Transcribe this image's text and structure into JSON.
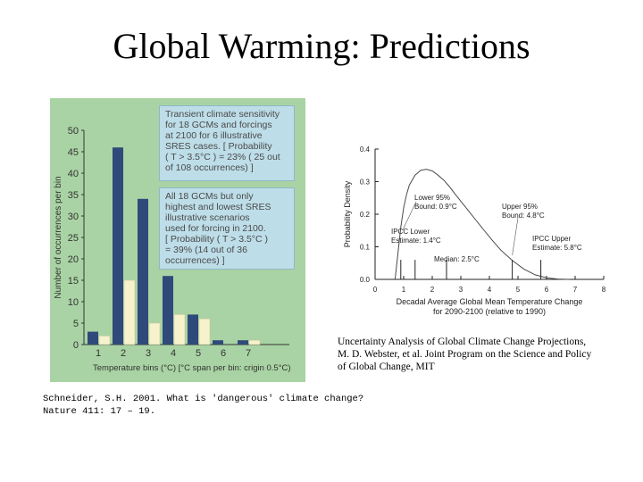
{
  "slide": {
    "title": "Global Warming: Predictions",
    "left_caption_lines": [
      "Schneider, S.H. 2001. What is 'dangerous' climate change?",
      "Nature 411: 17 – 19."
    ],
    "right_caption_lines": [
      "Uncertainty Analysis of Global Climate Change Projections,",
      "M. D. Webster, et al. Joint Program on the Science and Policy",
      "of Global Change, MIT"
    ]
  },
  "colors": {
    "panel_bg": "#a9d3a4",
    "dark_bar": "#2f4a7a",
    "light_bar": "#f6f2cc",
    "info_box_bg": "#bddde8",
    "curve": "#4a4a4a"
  },
  "chart_data": [
    {
      "type": "bar",
      "categories": [
        "1",
        "2",
        "3",
        "4",
        "5",
        "6",
        "7"
      ],
      "series": [
        {
          "values": [
            3,
            46,
            34,
            16,
            7,
            1,
            1
          ]
        },
        {
          "values": [
            2,
            15,
            5,
            7,
            6,
            0,
            1
          ]
        }
      ],
      "ylabel": "Number of occurrences per bin",
      "xlabel": "Temperature bins (°C) [°C span per bin: crigin 0.5°C)",
      "ylim": [
        0,
        50
      ],
      "yticks": [
        0,
        5,
        10,
        15,
        20,
        25,
        30,
        35,
        40,
        45,
        50
      ],
      "annotations": [
        [
          "Transient climate sensitivity",
          "for 18 GCMs and forcings",
          "at 2100 for 6 illustrative",
          "SRES cases. [ Probability",
          "( T > 3.5°C ) = 23% ( 25 out",
          "of 108 occurrences) ]"
        ],
        [
          "All 18 GCMs but only",
          "highest and lowest SRES",
          "illustrative scenarios",
          "used for forcing in 2100.",
          "[ Probability ( T > 3.5°C )",
          "= 39% (14 out of 36",
          "occurrences) ]"
        ]
      ]
    },
    {
      "type": "line",
      "ylabel": "Probability Density",
      "xlabel_lines": [
        "Decadal Average Global Mean Temperature Change",
        "for 2090-2100 (relative to 1990)"
      ],
      "xlim": [
        0,
        8
      ],
      "ylim": [
        0,
        0.4
      ],
      "xticks": [
        "0",
        "1",
        "2",
        "3",
        "4",
        "5",
        "6",
        "7",
        "8"
      ],
      "yticks": [
        "0.0",
        "0.1",
        "0.2",
        "0.3",
        "0.4"
      ],
      "x": [
        0.7,
        0.8,
        0.9,
        1.0,
        1.1,
        1.2,
        1.4,
        1.6,
        1.8,
        2.0,
        2.2,
        2.4,
        2.6,
        2.8,
        3.0,
        3.2,
        3.5,
        3.8,
        4.1,
        4.4,
        4.8,
        5.2,
        5.6,
        6.0,
        6.4,
        6.8
      ],
      "y": [
        0.0,
        0.08,
        0.16,
        0.22,
        0.26,
        0.29,
        0.32,
        0.335,
        0.338,
        0.333,
        0.32,
        0.305,
        0.285,
        0.262,
        0.24,
        0.218,
        0.185,
        0.152,
        0.12,
        0.09,
        0.058,
        0.032,
        0.014,
        0.005,
        0.001,
        0.0
      ],
      "markers": [
        {
          "x": 0.9,
          "lines": [
            "Lower 95%",
            "Bound: 0.9°C"
          ]
        },
        {
          "x": 1.4,
          "lines": [
            "IPCC Lower",
            "Estimate: 1.4°C"
          ]
        },
        {
          "x": 2.5,
          "lines": [
            "Median: 2.5°C"
          ]
        },
        {
          "x": 4.8,
          "lines": [
            "Upper 95%",
            "Bound: 4.8°C"
          ]
        },
        {
          "x": 5.8,
          "lines": [
            "IPCC Upper",
            "Estimate: 5.8°C"
          ]
        }
      ]
    }
  ]
}
